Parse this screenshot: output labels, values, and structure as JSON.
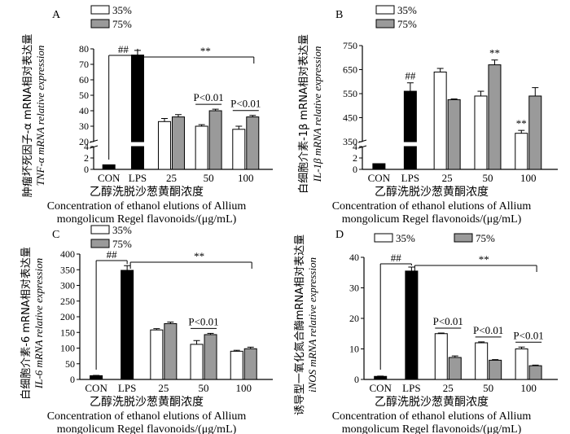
{
  "chart_data": [
    {
      "type": "bar",
      "panel_label": "A",
      "title": "",
      "ylabel_cn": "肿瘤坏死因子-α mRNA相对表达量",
      "ylabel_en": "TNF-α mRNA relative expression",
      "xlabel_cn": "乙醇洗脱沙葱黄酮浓度",
      "xlabel_en_1": "Concentration of ethanol elutions of Allium",
      "xlabel_en_2": "mongolicum Regel flavonoids/(μg/mL)",
      "ylim": [
        0,
        80
      ],
      "y_break": [
        4,
        20
      ],
      "yticks_lower": [
        0,
        2,
        4
      ],
      "yticks_upper": [
        20,
        30,
        40,
        50,
        60,
        70,
        80
      ],
      "categories": [
        "CON",
        "LPS",
        "25",
        "50",
        "100"
      ],
      "series": [
        {
          "name": "35%",
          "values": [
            null,
            null,
            33,
            30,
            28
          ],
          "errors": [
            null,
            null,
            2,
            1,
            2
          ]
        },
        {
          "name": "75%",
          "values": [
            null,
            null,
            36,
            40,
            36
          ],
          "errors": [
            null,
            null,
            1.5,
            1,
            1
          ]
        }
      ],
      "control_values": [
        0.8,
        76
      ],
      "control_errors": [
        0,
        3
      ],
      "annotations": [
        {
          "text": "##",
          "from": "CON",
          "to": "LPS"
        },
        {
          "text": "**",
          "from": "LPS",
          "to": "100"
        },
        {
          "text": "P<0.01",
          "group": "50"
        },
        {
          "text": "P<0.01",
          "group": "100"
        }
      ]
    },
    {
      "type": "bar",
      "panel_label": "B",
      "title": "",
      "ylabel_cn": "白细胞介素-1β mRNA相对表达量",
      "ylabel_en": "IL-1β mRNA relative expression",
      "xlabel_cn": "乙醇洗脱沙葱黄酮浓度",
      "xlabel_en_1": "Concentration of ethanol elutions of Allium",
      "xlabel_en_2": "mongolicum Regel flavonoids/(μg/mL)",
      "ylim": [
        0,
        750
      ],
      "y_break": [
        4,
        350
      ],
      "yticks_lower": [
        0,
        2,
        4
      ],
      "yticks_upper": [
        350,
        450,
        550,
        650,
        750
      ],
      "categories": [
        "CON",
        "LPS",
        "25",
        "50",
        "100"
      ],
      "series": [
        {
          "name": "35%",
          "values": [
            null,
            null,
            640,
            540,
            385
          ],
          "errors": [
            null,
            null,
            15,
            20,
            12
          ]
        },
        {
          "name": "75%",
          "values": [
            null,
            null,
            525,
            670,
            540
          ],
          "errors": [
            null,
            null,
            3,
            20,
            35
          ]
        }
      ],
      "control_values": [
        1,
        560
      ],
      "control_errors": [
        0,
        35
      ],
      "annotations": [
        {
          "text": "##",
          "over": "LPS"
        },
        {
          "text": "**",
          "over": "50 75%"
        },
        {
          "text": "**",
          "over": "100 35%"
        }
      ]
    },
    {
      "type": "bar",
      "panel_label": "C",
      "title": "",
      "ylabel_cn": "白细胞介素-6 mRNA相对表达量",
      "ylabel_en": "IL-6 mRNA relative expression",
      "xlabel_cn": "乙醇洗脱沙葱黄酮浓度",
      "xlabel_en_1": "Concentration of ethanol elutions of Allium",
      "xlabel_en_2": "mongolicum Regel flavonoids/(μg/mL)",
      "ylim": [
        0,
        400
      ],
      "yticks": [
        0,
        50,
        100,
        150,
        200,
        250,
        300,
        350,
        400
      ],
      "categories": [
        "CON",
        "LPS",
        "25",
        "50",
        "100"
      ],
      "series": [
        {
          "name": "35%",
          "values": [
            null,
            null,
            158,
            112,
            90
          ],
          "errors": [
            null,
            null,
            4,
            12,
            3
          ]
        },
        {
          "name": "75%",
          "values": [
            null,
            null,
            178,
            143,
            98
          ],
          "errors": [
            null,
            null,
            5,
            4,
            5
          ]
        }
      ],
      "control_values": [
        12,
        348
      ],
      "control_errors": [
        1,
        15
      ],
      "annotations": [
        {
          "text": "##",
          "from": "CON",
          "to": "LPS"
        },
        {
          "text": "**",
          "from": "LPS",
          "to": "100"
        },
        {
          "text": "P<0.01",
          "group": "50"
        }
      ]
    },
    {
      "type": "bar",
      "panel_label": "D",
      "title": "",
      "ylabel_cn": "诱导型一氧化氮合酶mRNA相对表达量",
      "ylabel_en": "iNOS mRNA relative expression",
      "xlabel_cn": "乙醇洗脱沙葱黄酮浓度",
      "xlabel_en_1": "Concentration of ethanol elutions of Allium",
      "xlabel_en_2": "mongolicum Regel flavonoids/(μg/mL)",
      "ylim": [
        0,
        40
      ],
      "yticks": [
        0,
        10,
        20,
        30,
        40
      ],
      "categories": [
        "CON",
        "LPS",
        "25",
        "50",
        "100"
      ],
      "series": [
        {
          "name": "35%",
          "values": [
            null,
            null,
            15,
            12,
            10
          ],
          "errors": [
            null,
            null,
            0.2,
            0.3,
            0.6
          ]
        },
        {
          "name": "75%",
          "values": [
            null,
            null,
            7.2,
            6.3,
            4.5
          ],
          "errors": [
            null,
            null,
            0.5,
            0.2,
            0.2
          ]
        }
      ],
      "control_values": [
        1,
        35.5
      ],
      "control_errors": [
        0.1,
        1.3
      ],
      "annotations": [
        {
          "text": "##",
          "from": "CON",
          "to": "LPS"
        },
        {
          "text": "**",
          "from": "LPS",
          "to": "100"
        },
        {
          "text": "P<0.01",
          "group": "25"
        },
        {
          "text": "P<0.01",
          "group": "50"
        },
        {
          "text": "P<0.01",
          "group": "100"
        }
      ]
    }
  ],
  "colors": {
    "white_bar": "#ffffff",
    "grey_bar": "#9a9a9a",
    "lps_bar": "#000000",
    "axis": "#000000"
  }
}
